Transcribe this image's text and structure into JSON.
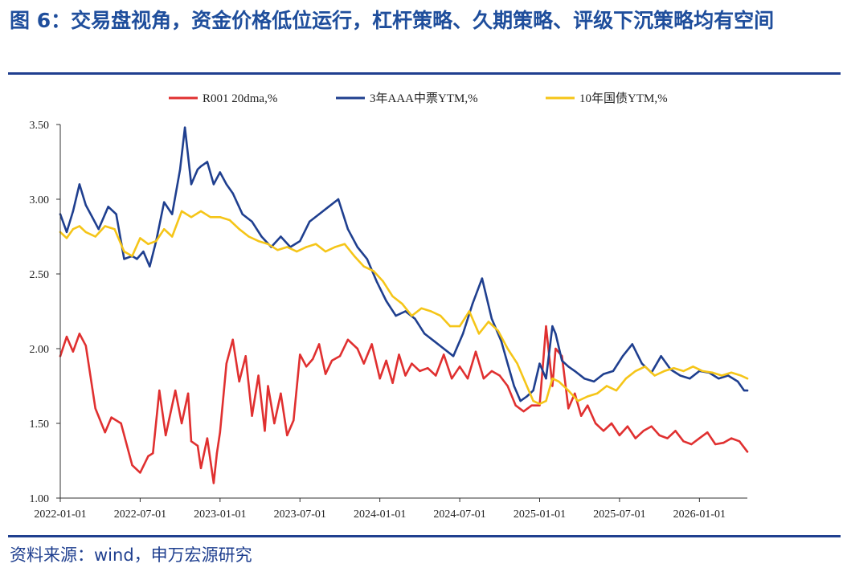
{
  "title": "图 6：交易盘视角，资金价格低位运行，杠杆策略、久期策略、评级下沉策略均有空间",
  "source": "资料来源：wind，申万宏源研究",
  "chart_data": {
    "type": "line",
    "title": "",
    "xlabel": "",
    "ylabel": "",
    "ylim": [
      1.0,
      3.5
    ],
    "yticks": [
      "1.00",
      "1.50",
      "2.00",
      "2.50",
      "3.00",
      "3.50"
    ],
    "xlim": [
      2022.0,
      2026.3
    ],
    "xticks": [
      "2022-01-01",
      "2022-07-01",
      "2023-01-01",
      "2023-07-01",
      "2024-01-01",
      "2024-07-01",
      "2025-01-01",
      "2025-07-01",
      "2026-01-01"
    ],
    "grid": false,
    "legend": "top",
    "series": [
      {
        "name": "R001 20dma,%",
        "color": "#e03030",
        "x": [
          2022.0,
          2022.04,
          2022.08,
          2022.12,
          2022.16,
          2022.22,
          2022.28,
          2022.32,
          2022.38,
          2022.45,
          2022.5,
          2022.55,
          2022.58,
          2022.62,
          2022.66,
          2022.72,
          2022.76,
          2022.8,
          2022.82,
          2022.86,
          2022.88,
          2022.92,
          2022.96,
          2022.98,
          2023.0,
          2023.04,
          2023.08,
          2023.12,
          2023.16,
          2023.2,
          2023.24,
          2023.28,
          2023.3,
          2023.34,
          2023.38,
          2023.42,
          2023.46,
          2023.5,
          2023.54,
          2023.58,
          2023.62,
          2023.66,
          2023.7,
          2023.75,
          2023.8,
          2023.86,
          2023.9,
          2023.95,
          2024.0,
          2024.04,
          2024.08,
          2024.12,
          2024.16,
          2024.2,
          2024.25,
          2024.3,
          2024.35,
          2024.4,
          2024.45,
          2024.5,
          2024.55,
          2024.6,
          2024.65,
          2024.7,
          2024.75,
          2024.8,
          2024.85,
          2024.9,
          2024.95,
          2025.0,
          2025.04,
          2025.08,
          2025.1,
          2025.14,
          2025.18,
          2025.22,
          2025.26,
          2025.3,
          2025.35,
          2025.4,
          2025.45,
          2025.5,
          2025.55,
          2025.6,
          2025.65,
          2025.7,
          2025.75,
          2025.8,
          2025.85,
          2025.9,
          2025.95,
          2026.0,
          2026.05,
          2026.1,
          2026.15,
          2026.2,
          2026.25,
          2026.3
        ],
        "values": [
          1.95,
          2.08,
          1.98,
          2.1,
          2.02,
          1.6,
          1.44,
          1.54,
          1.5,
          1.22,
          1.17,
          1.28,
          1.3,
          1.72,
          1.42,
          1.72,
          1.5,
          1.7,
          1.38,
          1.35,
          1.2,
          1.4,
          1.1,
          1.3,
          1.44,
          1.9,
          2.06,
          1.78,
          1.95,
          1.55,
          1.82,
          1.45,
          1.75,
          1.5,
          1.7,
          1.42,
          1.52,
          1.96,
          1.88,
          1.93,
          2.03,
          1.83,
          1.92,
          1.95,
          2.06,
          2.0,
          1.9,
          2.03,
          1.8,
          1.92,
          1.77,
          1.96,
          1.82,
          1.9,
          1.85,
          1.87,
          1.82,
          1.96,
          1.8,
          1.88,
          1.8,
          1.98,
          1.8,
          1.85,
          1.82,
          1.75,
          1.62,
          1.58,
          1.62,
          1.62,
          2.15,
          1.75,
          2.0,
          1.95,
          1.6,
          1.7,
          1.55,
          1.62,
          1.5,
          1.45,
          1.5,
          1.42,
          1.48,
          1.4,
          1.45,
          1.48,
          1.42,
          1.4,
          1.45,
          1.38,
          1.36,
          1.4,
          1.44,
          1.36,
          1.37,
          1.4,
          1.38,
          1.31
        ]
      },
      {
        "name": "3年AAA中票YTM,%",
        "color": "#1f3f8f",
        "x": [
          2022.0,
          2022.04,
          2022.08,
          2022.12,
          2022.16,
          2022.2,
          2022.24,
          2022.3,
          2022.35,
          2022.4,
          2022.45,
          2022.48,
          2022.52,
          2022.56,
          2022.6,
          2022.65,
          2022.7,
          2022.75,
          2022.78,
          2022.82,
          2022.86,
          2022.88,
          2022.92,
          2022.96,
          2023.0,
          2023.04,
          2023.08,
          2023.14,
          2023.2,
          2023.26,
          2023.32,
          2023.38,
          2023.44,
          2023.5,
          2023.56,
          2023.62,
          2023.68,
          2023.74,
          2023.8,
          2023.86,
          2023.92,
          2023.98,
          2024.04,
          2024.1,
          2024.16,
          2024.22,
          2024.28,
          2024.34,
          2024.4,
          2024.46,
          2024.52,
          2024.58,
          2024.64,
          2024.7,
          2024.76,
          2024.8,
          2024.84,
          2024.88,
          2024.92,
          2024.96,
          2025.0,
          2025.04,
          2025.08,
          2025.1,
          2025.14,
          2025.18,
          2025.22,
          2025.28,
          2025.34,
          2025.4,
          2025.46,
          2025.52,
          2025.58,
          2025.64,
          2025.7,
          2025.76,
          2025.82,
          2025.88,
          2025.94,
          2026.0,
          2026.06,
          2026.12,
          2026.18,
          2026.24,
          2026.28,
          2026.3
        ],
        "values": [
          2.9,
          2.78,
          2.92,
          3.1,
          2.96,
          2.88,
          2.8,
          2.95,
          2.9,
          2.6,
          2.62,
          2.6,
          2.65,
          2.55,
          2.72,
          2.98,
          2.9,
          3.2,
          3.48,
          3.1,
          3.2,
          3.22,
          3.25,
          3.1,
          3.18,
          3.1,
          3.04,
          2.9,
          2.85,
          2.75,
          2.68,
          2.75,
          2.68,
          2.72,
          2.85,
          2.9,
          2.95,
          3.0,
          2.8,
          2.68,
          2.6,
          2.45,
          2.32,
          2.22,
          2.25,
          2.2,
          2.1,
          2.05,
          2.0,
          1.95,
          2.1,
          2.3,
          2.47,
          2.2,
          2.05,
          1.9,
          1.75,
          1.65,
          1.68,
          1.72,
          1.9,
          1.8,
          2.15,
          2.1,
          1.92,
          1.88,
          1.85,
          1.8,
          1.78,
          1.83,
          1.85,
          1.95,
          2.03,
          1.9,
          1.84,
          1.95,
          1.86,
          1.82,
          1.8,
          1.85,
          1.84,
          1.8,
          1.82,
          1.78,
          1.72,
          1.72
        ]
      },
      {
        "name": "10年国债YTM,%",
        "color": "#f5c518",
        "x": [
          2022.0,
          2022.04,
          2022.08,
          2022.12,
          2022.16,
          2022.22,
          2022.28,
          2022.34,
          2022.4,
          2022.45,
          2022.5,
          2022.55,
          2022.6,
          2022.65,
          2022.7,
          2022.76,
          2022.82,
          2022.88,
          2022.94,
          2023.0,
          2023.06,
          2023.12,
          2023.18,
          2023.24,
          2023.3,
          2023.36,
          2023.42,
          2023.48,
          2023.54,
          2023.6,
          2023.66,
          2023.72,
          2023.78,
          2023.84,
          2023.9,
          2023.96,
          2024.02,
          2024.08,
          2024.14,
          2024.2,
          2024.26,
          2024.32,
          2024.38,
          2024.44,
          2024.5,
          2024.56,
          2024.62,
          2024.68,
          2024.74,
          2024.8,
          2024.86,
          2024.92,
          2024.96,
          2025.0,
          2025.04,
          2025.08,
          2025.12,
          2025.18,
          2025.24,
          2025.3,
          2025.36,
          2025.42,
          2025.48,
          2025.54,
          2025.6,
          2025.66,
          2025.72,
          2025.78,
          2025.84,
          2025.9,
          2025.96,
          2026.02,
          2026.08,
          2026.14,
          2026.2,
          2026.26,
          2026.3
        ],
        "values": [
          2.78,
          2.74,
          2.8,
          2.82,
          2.78,
          2.75,
          2.82,
          2.8,
          2.65,
          2.62,
          2.74,
          2.7,
          2.72,
          2.8,
          2.75,
          2.92,
          2.88,
          2.92,
          2.88,
          2.88,
          2.86,
          2.8,
          2.75,
          2.72,
          2.7,
          2.66,
          2.68,
          2.65,
          2.68,
          2.7,
          2.65,
          2.68,
          2.7,
          2.62,
          2.55,
          2.52,
          2.45,
          2.35,
          2.3,
          2.22,
          2.27,
          2.25,
          2.22,
          2.15,
          2.15,
          2.25,
          2.1,
          2.18,
          2.12,
          2.0,
          1.9,
          1.75,
          1.65,
          1.63,
          1.65,
          1.8,
          1.78,
          1.72,
          1.65,
          1.68,
          1.7,
          1.75,
          1.72,
          1.8,
          1.85,
          1.88,
          1.82,
          1.85,
          1.87,
          1.85,
          1.88,
          1.85,
          1.84,
          1.82,
          1.84,
          1.82,
          1.8
        ]
      }
    ]
  }
}
